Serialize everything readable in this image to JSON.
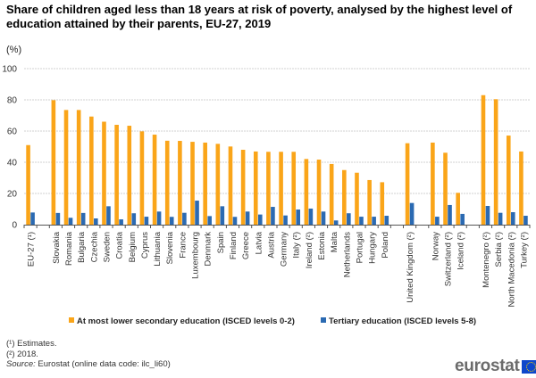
{
  "title": "Share of children aged less than 18 years at risk of poverty, analysed by the highest level of education attained by their parents, EU-27, 2019",
  "unit_label": "(%)",
  "chart_data": {
    "type": "bar",
    "title": "Share of children aged less than 18 years at risk of poverty, analysed by the highest level of education attained by their parents, EU-27, 2019",
    "xlabel": "",
    "ylabel": "(%)",
    "ylim": [
      0,
      100
    ],
    "yticks": [
      0,
      20,
      40,
      60,
      80,
      100
    ],
    "grid": true,
    "legend_position": "bottom",
    "categories": [
      "EU-27 (¹)",
      "",
      "Slovakia",
      "Romania",
      "Bulgaria",
      "Czechia",
      "Sweden",
      "Croatia",
      "Belgium",
      "Cyprus",
      "Lithuania",
      "Slovenia",
      "France",
      "Luxembourg",
      "Denmark",
      "Spain",
      "Finland",
      "Greece",
      "Latvia",
      "Austria",
      "Germany",
      "Italy (²)",
      "Ireland (²)",
      "Estonia",
      "Malta",
      "Netherlands",
      "Portugal",
      "Hungary",
      "Poland",
      "",
      "United Kingdom (²)",
      "",
      "Norway",
      "Switzerland (²)",
      "Iceland (²)",
      "",
      "Montenegro (²)",
      "Serbia (²)",
      "North Macedonia (²)",
      "Turkey (²)"
    ],
    "series": [
      {
        "name": "At most lower secondary education (ISCED levels 0-2)",
        "color": "#FAA519",
        "values": [
          51.0,
          null,
          79.8,
          73.5,
          73.5,
          69.3,
          66.0,
          64.0,
          63.4,
          59.8,
          57.7,
          53.8,
          53.7,
          53.1,
          52.6,
          51.8,
          50.1,
          48.0,
          46.9,
          46.7,
          46.7,
          46.7,
          42.1,
          41.7,
          38.9,
          35.0,
          33.3,
          28.6,
          27.2,
          null,
          52.2,
          null,
          52.6,
          46.1,
          20.4,
          null,
          83.0,
          80.4,
          57.1,
          46.9
        ]
      },
      {
        "name": "Tertiary education (ISCED levels 5-8)",
        "color": "#2B6AB2",
        "values": [
          7.8,
          null,
          7.5,
          4.4,
          7.5,
          4.0,
          11.8,
          3.4,
          7.3,
          5.1,
          8.4,
          5.0,
          7.6,
          15.4,
          5.5,
          11.8,
          5.0,
          8.4,
          6.5,
          11.4,
          5.9,
          9.7,
          10.3,
          8.4,
          2.7,
          7.3,
          5.1,
          5.1,
          5.7,
          null,
          13.9,
          null,
          5.1,
          12.6,
          6.9,
          null,
          12.0,
          7.6,
          8.0,
          5.7
        ]
      }
    ]
  },
  "footnotes": [
    "(¹) Estimates.",
    "(²) 2018."
  ],
  "source_label": "Source:",
  "source_text": " Eurostat (online data code: ilc_li60)",
  "logo_text": "eurostat"
}
